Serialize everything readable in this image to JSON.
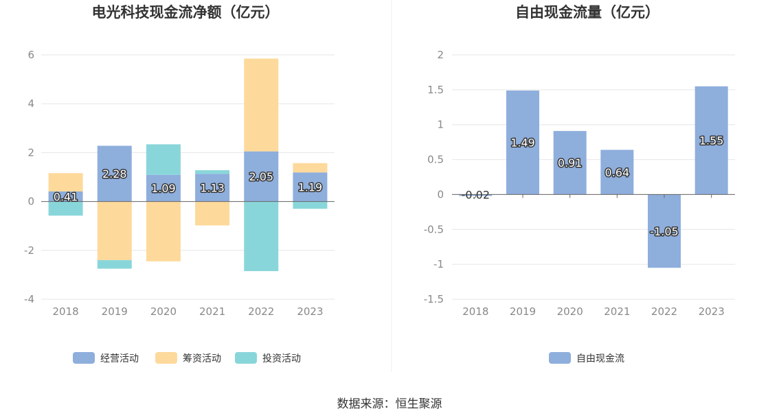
{
  "source": "数据来源：恒生聚源",
  "colors": {
    "operating": "#8eaedc",
    "financing": "#fdd99b",
    "investing": "#89d6da",
    "free": "#8eaedc"
  },
  "chart_data": [
    {
      "type": "bar",
      "stacked": true,
      "title": "电光科技现金流净额（亿元）",
      "categories": [
        "2018",
        "2019",
        "2020",
        "2021",
        "2022",
        "2023"
      ],
      "ylim": [
        -4,
        6
      ],
      "yticks": [
        -4,
        -2,
        0,
        2,
        4,
        6
      ],
      "grid": true,
      "legend_position": "bottom",
      "series": [
        {
          "name": "经营活动",
          "values": [
            0.41,
            2.28,
            1.09,
            1.13,
            2.05,
            1.19
          ],
          "labels": [
            "0.41",
            "2.28",
            "1.09",
            "1.13",
            "2.05",
            "1.19"
          ]
        },
        {
          "name": "筹资活动",
          "values": [
            0.75,
            -2.4,
            -2.45,
            -0.98,
            3.8,
            0.38
          ]
        },
        {
          "name": "投资活动",
          "values": [
            -0.58,
            -0.35,
            1.25,
            0.15,
            -2.85,
            -0.3
          ]
        }
      ]
    },
    {
      "type": "bar",
      "title": "自由现金流量（亿元）",
      "categories": [
        "2018",
        "2019",
        "2020",
        "2021",
        "2022",
        "2023"
      ],
      "ylim": [
        -1.5,
        2
      ],
      "yticks": [
        "-1.5",
        "-1",
        "-0.5",
        "0",
        "0.5",
        "1",
        "1.5",
        "2"
      ],
      "grid": true,
      "legend_position": "bottom",
      "series": [
        {
          "name": "自由现金流",
          "values": [
            -0.02,
            1.49,
            0.91,
            0.64,
            -1.05,
            1.55
          ],
          "labels": [
            "-0.02",
            "1.49",
            "0.91",
            "0.64",
            "-1.05",
            "1.55"
          ]
        }
      ]
    }
  ]
}
